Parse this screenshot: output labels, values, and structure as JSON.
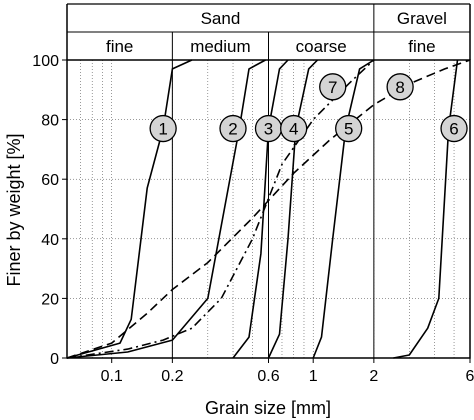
{
  "chart_data": {
    "type": "line",
    "title": "",
    "xlabel": "Grain size [mm]",
    "ylabel": "Finer by weight [%]",
    "x_scale": "log",
    "xlim": [
      0.06,
      6
    ],
    "ylim": [
      0,
      100
    ],
    "x_ticks": [
      {
        "value": 0.1,
        "label": "0.1"
      },
      {
        "value": 0.2,
        "label": "0.2"
      },
      {
        "value": 0.6,
        "label": "0.6"
      },
      {
        "value": 1,
        "label": "1"
      },
      {
        "value": 2,
        "label": "2"
      },
      {
        "value": 6,
        "label": "6"
      }
    ],
    "y_ticks": [
      0,
      20,
      40,
      60,
      80,
      100
    ],
    "grid": true,
    "header": {
      "groups": [
        {
          "label": "Sand",
          "from": 0.06,
          "to": 2
        },
        {
          "label": "Gravel",
          "from": 2,
          "to": 6
        }
      ],
      "classes": [
        {
          "label": "fine",
          "from": 0.06,
          "to": 0.2
        },
        {
          "label": "medium",
          "from": 0.2,
          "to": 0.6
        },
        {
          "label": "coarse",
          "from": 0.6,
          "to": 2
        },
        {
          "label": "fine",
          "from": 2,
          "to": 6
        }
      ]
    },
    "series": [
      {
        "name": "1",
        "style": "solid",
        "label_at": [
          0.18,
          77
        ],
        "x": [
          0.06,
          0.11,
          0.125,
          0.15,
          0.18,
          0.2,
          0.25
        ],
        "y": [
          0,
          5,
          13,
          57,
          77,
          97,
          100
        ]
      },
      {
        "name": "2",
        "style": "solid",
        "label_at": [
          0.4,
          77
        ],
        "x": [
          0.06,
          0.12,
          0.2,
          0.3,
          0.43,
          0.48,
          0.58
        ],
        "y": [
          0,
          2,
          6,
          20,
          77,
          97,
          100
        ]
      },
      {
        "name": "3",
        "style": "solid",
        "label_at": [
          0.6,
          77
        ],
        "x": [
          0.4,
          0.48,
          0.55,
          0.6,
          0.68,
          0.75
        ],
        "y": [
          0,
          7,
          35,
          77,
          97,
          100
        ]
      },
      {
        "name": "4",
        "style": "solid",
        "label_at": [
          0.8,
          77
        ],
        "x": [
          0.6,
          0.68,
          0.75,
          0.82,
          0.95,
          1.05
        ],
        "y": [
          0,
          8,
          40,
          77,
          97,
          100
        ]
      },
      {
        "name": "5",
        "style": "solid",
        "label_at": [
          1.5,
          77
        ],
        "x": [
          1.0,
          1.1,
          1.25,
          1.45,
          1.7,
          2.0
        ],
        "y": [
          0,
          7,
          40,
          77,
          97,
          100
        ]
      },
      {
        "name": "6",
        "style": "solid",
        "label_at": [
          5.0,
          77
        ],
        "x": [
          2.5,
          3.0,
          3.7,
          4.2,
          4.7,
          5.2
        ],
        "y": [
          0,
          1,
          10,
          20,
          77,
          100
        ]
      },
      {
        "name": "7",
        "style": "dashdot",
        "label_at": [
          1.25,
          91
        ],
        "x": [
          0.06,
          0.12,
          0.18,
          0.25,
          0.35,
          0.5,
          0.7,
          1.0,
          1.5,
          2.0
        ],
        "y": [
          0,
          3,
          6,
          10,
          20,
          40,
          65,
          80,
          92,
          100
        ]
      },
      {
        "name": "8",
        "style": "dashed",
        "label_at": [
          2.7,
          91
        ],
        "x": [
          0.06,
          0.1,
          0.15,
          0.2,
          0.3,
          0.5,
          0.8,
          1.2,
          2.0,
          3.0,
          4.5,
          6.0
        ],
        "y": [
          0,
          5,
          15,
          23,
          32,
          47,
          62,
          73,
          85,
          92,
          97,
          100
        ]
      }
    ]
  }
}
